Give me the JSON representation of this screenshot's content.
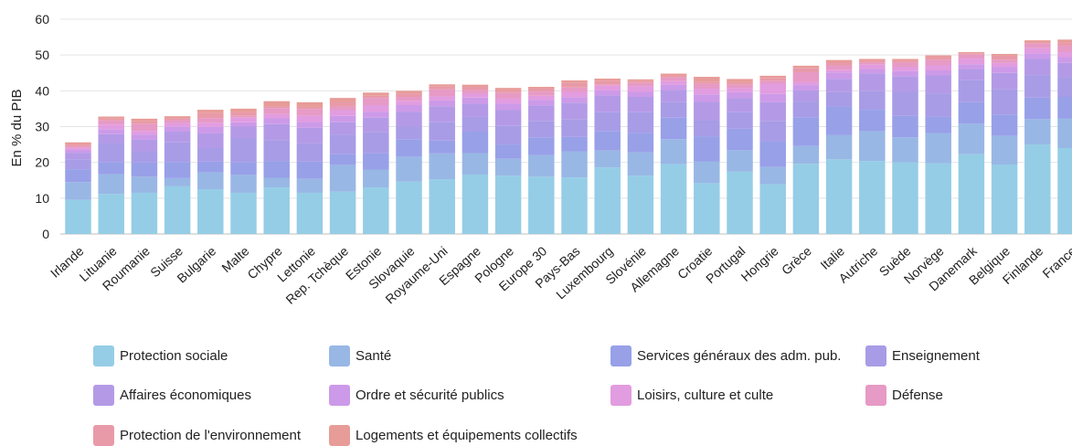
{
  "chart_data": {
    "type": "bar",
    "stacked": true,
    "ylabel": "En % du PIB",
    "ylim": [
      0,
      60
    ],
    "yticks": [
      0,
      10,
      20,
      30,
      40,
      50,
      60
    ],
    "grid": true,
    "legend_position": "bottom",
    "categories": [
      "Irlande",
      "Lituanie",
      "Roumanie",
      "Suisse",
      "Bulgarie",
      "Malte",
      "Chypre",
      "Lettonie",
      "Rep. Tchèque",
      "Estonie",
      "Slovaquie",
      "Royaume-Uni",
      "Espagne",
      "Pologne",
      "Europe 30",
      "Pays-Bas",
      "Luxembourg",
      "Slovénie",
      "Allemagne",
      "Croatie",
      "Portugal",
      "Hongrie",
      "Grèce",
      "Italie",
      "Autriche",
      "Suède",
      "Norvège",
      "Danemark",
      "Belgique",
      "Finlande",
      "France"
    ],
    "series": [
      {
        "name": "Protection sociale",
        "color": "#95cde6",
        "values": [
          9.5,
          11.2,
          11.5,
          13.3,
          12.5,
          11.5,
          13,
          11.5,
          11.8,
          13,
          14.6,
          15.3,
          16.6,
          16.3,
          16,
          15.8,
          18.6,
          16.3,
          19.5,
          14.2,
          17.4,
          13.9,
          19.6,
          20.9,
          20.4,
          20,
          19.7,
          22.3,
          19.4,
          25,
          24
        ]
      },
      {
        "name": "Santé",
        "color": "#98b7e5",
        "values": [
          5,
          5.5,
          4.5,
          2.3,
          4.7,
          5,
          2.7,
          3.9,
          7.5,
          5,
          7,
          7.2,
          6,
          4.7,
          6,
          7.3,
          4.7,
          6.5,
          7,
          6.1,
          6,
          4.8,
          5,
          6.7,
          8.3,
          7,
          8.5,
          8.5,
          8,
          7.1,
          8.3
        ]
      },
      {
        "name": "Services généraux des adm. pub.",
        "color": "#98a0e8",
        "values": [
          3.6,
          3.4,
          4,
          4.5,
          3,
          3.6,
          4.7,
          4.8,
          3,
          4.5,
          4.9,
          3.6,
          6,
          4,
          5,
          4,
          5.5,
          5.5,
          6,
          7,
          6,
          7.2,
          8,
          8,
          6,
          6,
          4.5,
          6,
          6,
          6,
          6
        ]
      },
      {
        "name": "Enseignement",
        "color": "#a89ce6",
        "values": [
          2.8,
          5.3,
          3.1,
          5.5,
          3.8,
          6.7,
          5.8,
          5.1,
          5.5,
          6,
          3.5,
          5.1,
          4.1,
          5.2,
          4.6,
          5,
          5.2,
          5.7,
          4.3,
          4.6,
          4.6,
          5.7,
          4.4,
          4,
          5.2,
          6.7,
          6.6,
          6.3,
          7.1,
          6.3,
          5.5
        ]
      },
      {
        "name": "Affaires économiques",
        "color": "#b49ae6",
        "values": [
          1.8,
          2.5,
          3.3,
          3,
          4.1,
          3.2,
          4.5,
          4.4,
          3.4,
          4,
          4.1,
          4.5,
          3.7,
          4.4,
          4.3,
          4.6,
          4.7,
          4.3,
          3.4,
          5,
          3.9,
          5.2,
          3.1,
          3.7,
          5,
          4.4,
          5,
          3,
          4.5,
          4.5,
          4
        ]
      },
      {
        "name": "Ordre et sécurité publics",
        "color": "#cc9ae8",
        "values": [
          0.8,
          1.4,
          1.4,
          1.3,
          1.8,
          1.2,
          1.6,
          1.6,
          1.8,
          1.6,
          1.9,
          1.6,
          1.7,
          1.8,
          1.6,
          1.5,
          1.4,
          1.4,
          1.5,
          2.1,
          1.7,
          2.3,
          1.5,
          1.8,
          1.2,
          1.4,
          1.4,
          1.3,
          1.6,
          1.6,
          1.6
        ]
      },
      {
        "name": "Loisirs, culture et culte",
        "color": "#e29ce0",
        "values": [
          0.6,
          1.3,
          1,
          1.1,
          1.2,
          1.3,
          1.2,
          1.7,
          1.6,
          1.9,
          1.2,
          1.1,
          1.1,
          1.4,
          1.1,
          1.5,
          1.3,
          1.5,
          1,
          1.6,
          1.1,
          2.9,
          0.9,
          0.8,
          1.2,
          1.1,
          1.4,
          1.6,
          1.2,
          1.4,
          1.4
        ]
      },
      {
        "name": "Défense",
        "color": "#e69ac5",
        "values": [
          0.3,
          1.1,
          1.9,
          0.8,
          1.3,
          0.5,
          1.7,
          1.9,
          1,
          2,
          1.1,
          2,
          1,
          1.6,
          1.2,
          1.2,
          0.3,
          1,
          1,
          1.3,
          1,
          0.8,
          2.7,
          1.2,
          0.6,
          1.3,
          1.5,
          1.1,
          0.9,
          1.3,
          1.8
        ]
      },
      {
        "name": "Protection de l'environnement",
        "color": "#e89aa8",
        "values": [
          0.6,
          0.5,
          0.8,
          0.6,
          1.4,
          1.1,
          0.4,
          0.6,
          1.3,
          0.6,
          1,
          0.8,
          0.9,
          0.7,
          0.8,
          1.4,
          1.1,
          0.5,
          0.6,
          0.7,
          0.7,
          0.8,
          1.2,
          0.9,
          0.5,
          0.5,
          0.8,
          0.4,
          1.1,
          0.3,
          1
        ]
      },
      {
        "name": "Logements et équipements collectifs",
        "color": "#e79c98",
        "values": [
          0.6,
          0.6,
          0.7,
          0.5,
          0.9,
          0.9,
          1.5,
          1.3,
          1.1,
          0.9,
          0.7,
          0.6,
          0.6,
          0.7,
          0.5,
          0.6,
          0.6,
          0.5,
          0.5,
          1.3,
          0.9,
          0.6,
          0.6,
          0.6,
          0.5,
          0.5,
          0.5,
          0.3,
          0.5,
          0.6,
          0.7
        ]
      }
    ]
  }
}
